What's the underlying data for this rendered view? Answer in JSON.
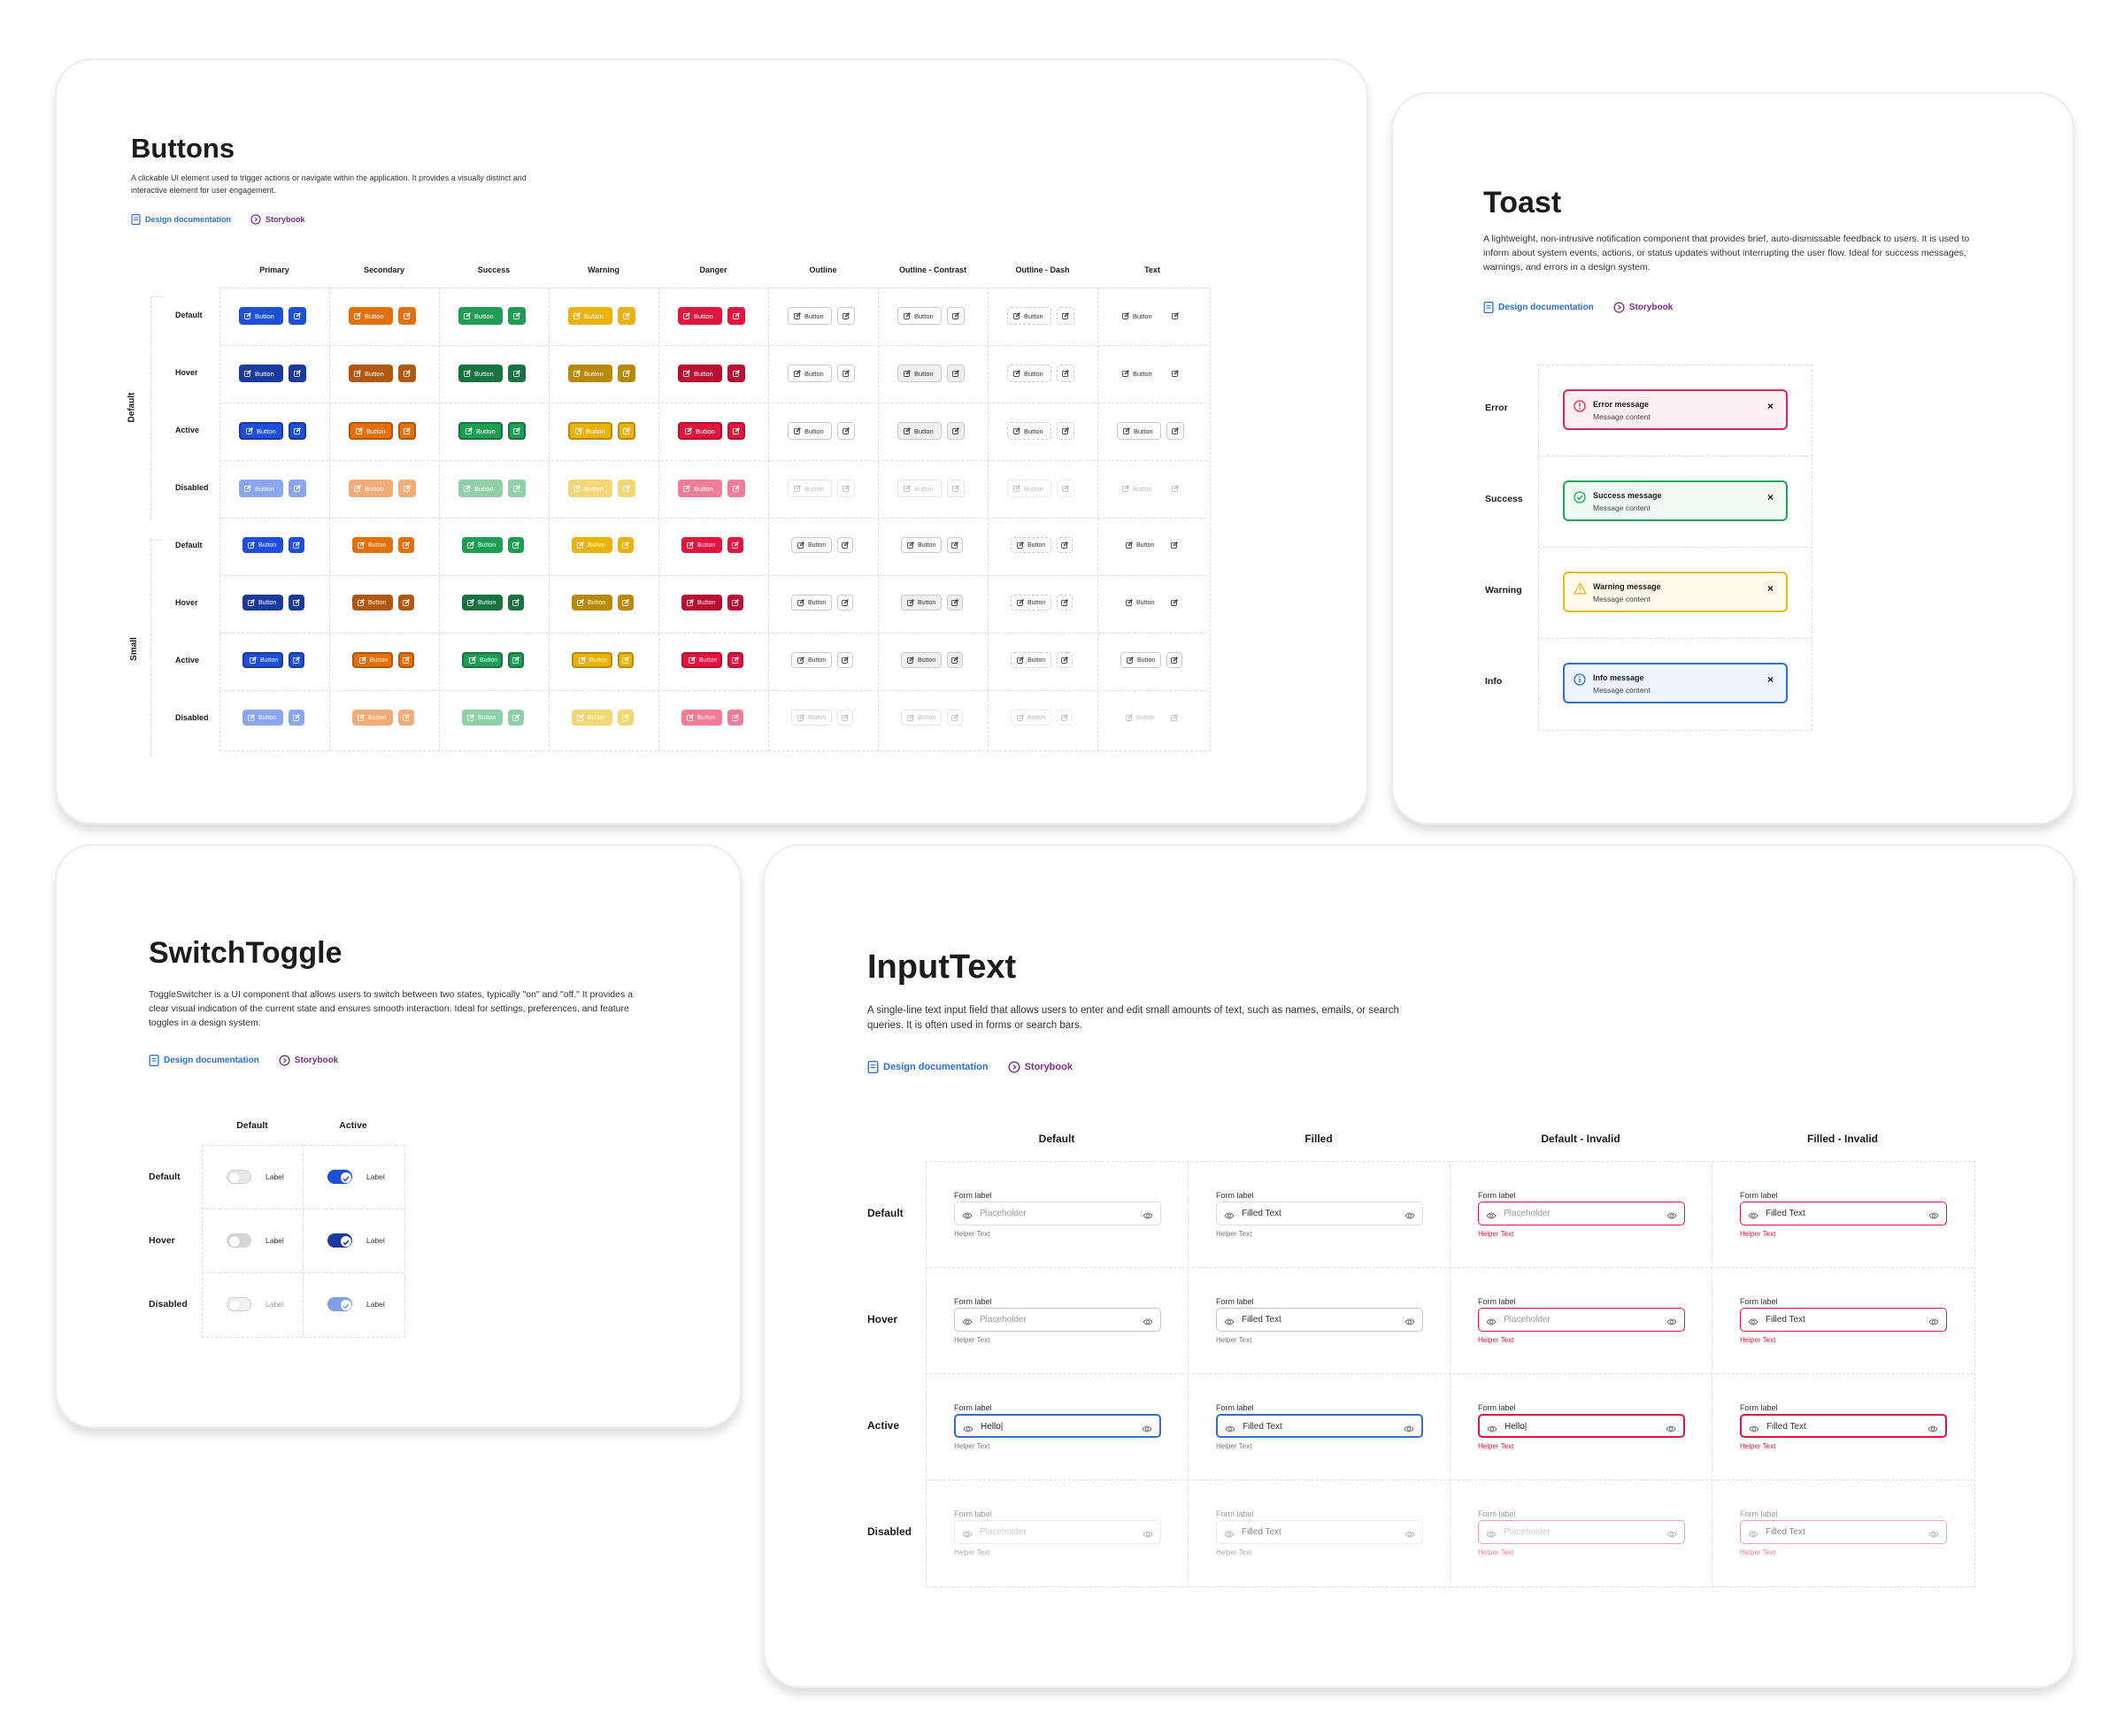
{
  "links": {
    "doc": "Design documentation",
    "storybook": "Storybook"
  },
  "buttons": {
    "title": "Buttons",
    "description": "A clickable UI element used to trigger actions or navigate within the application. It provides a visually distinct and interactive element for user engagement.",
    "columns": [
      "Primary",
      "Secondary",
      "Success",
      "Warning",
      "Danger",
      "Outline",
      "Outline - Contrast",
      "Outline - Dash",
      "Text"
    ],
    "groups": [
      "Default",
      "Small"
    ],
    "rows": [
      "Default",
      "Hover",
      "Active",
      "Disabled",
      "Default",
      "Hover",
      "Active",
      "Disabled"
    ],
    "button_label": "Button",
    "colors": {
      "primary": "#1d4fd8",
      "secondary": "#e0710d",
      "success": "#1f9d55",
      "warning": "#e9b20e",
      "danger": "#e0163e"
    }
  },
  "toast": {
    "title": "Toast",
    "description": "A lightweight, non-intrusive notification component that provides brief, auto-dismissable feedback to users. It is used to inform about system events, actions, or status updates without interrupting the user flow. Ideal for success messages, warnings, and errors in a design system.",
    "items": [
      {
        "type": "Error",
        "title": "Error message",
        "content": "Message content",
        "color": "#d6285b",
        "bg": "#fdeef2",
        "icon": "alert-circle-icon"
      },
      {
        "type": "Success",
        "title": "Success message",
        "content": "Message content",
        "color": "#22a55b",
        "bg": "#eefaf2",
        "icon": "check-circle-icon"
      },
      {
        "type": "Warning",
        "title": "Warning message",
        "content": "Message content",
        "color": "#e8b91a",
        "bg": "#fffaea",
        "icon": "warning-triangle-icon"
      },
      {
        "type": "Info",
        "title": "Info message",
        "content": "Message content",
        "color": "#2f6fd0",
        "bg": "#eef4fd",
        "icon": "info-circle-icon"
      }
    ],
    "close": "×"
  },
  "switch": {
    "title": "SwitchToggle",
    "description": "ToggleSwitcher is a UI component that allows users to switch between two states, typically \"on\" and \"off.\" It provides a clear visual indication of the current state and ensures smooth interaction. Ideal for settings, preferences, and feature toggles in a design system.",
    "columns": [
      "Default",
      "Active"
    ],
    "rows": [
      "Default",
      "Hover",
      "Disabled"
    ],
    "label": "Label"
  },
  "input": {
    "title": "InputText",
    "description": "A single-line text input field that allows users to enter and edit small amounts of text, such as names, emails, or search queries. It is often used in forms or search bars.",
    "columns": [
      "Default",
      "Filled",
      "Default - Invalid",
      "Filled - Invalid"
    ],
    "rows": [
      "Default",
      "Hover",
      "Active",
      "Disabled"
    ],
    "form_label": "Form label",
    "helper": "Helper Text",
    "placeholder": "Placeholder",
    "filled": "Filled Text",
    "active_value": "Hello|"
  }
}
